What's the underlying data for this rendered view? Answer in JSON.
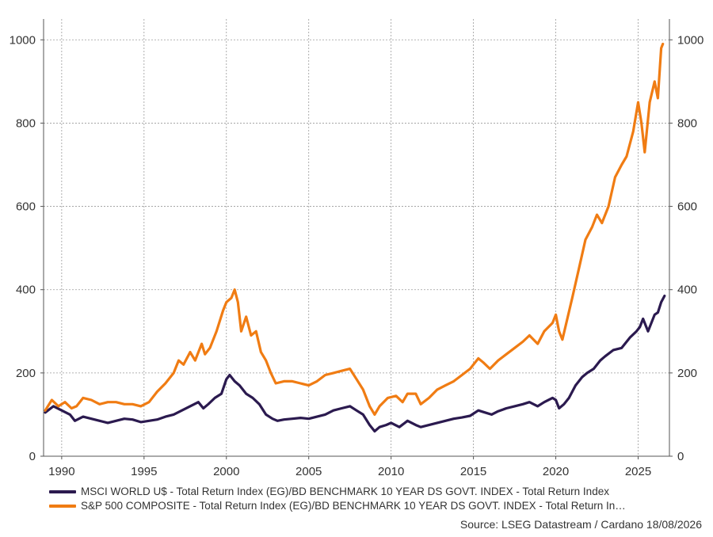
{
  "chart_data": {
    "type": "line",
    "title": "",
    "xlabel": "",
    "ylabel": "",
    "xlim": [
      1988.9,
      2026.9
    ],
    "ylim": [
      0,
      1050
    ],
    "x_ticks": [
      1990,
      1995,
      2000,
      2005,
      2010,
      2015,
      2020,
      2025
    ],
    "y_ticks": [
      0,
      200,
      400,
      600,
      800,
      1000
    ],
    "grid": true,
    "legend_position": "bottom",
    "series": [
      {
        "name": "MSCI WORLD U$ - Total Return Index (EG)/BD BENCHMARK 10 YEAR DS GOVT. INDEX - Total Return Index",
        "color": "#2b1a4f",
        "x": [
          1989.0,
          1989.5,
          1990.0,
          1990.5,
          1990.8,
          1991.3,
          1991.8,
          1992.3,
          1992.8,
          1993.3,
          1993.8,
          1994.3,
          1994.8,
          1995.3,
          1995.8,
          1996.3,
          1996.8,
          1997.3,
          1997.8,
          1998.3,
          1998.6,
          1998.9,
          1999.3,
          1999.7,
          2000.0,
          2000.2,
          2000.5,
          2000.8,
          2001.2,
          2001.6,
          2002.0,
          2002.4,
          2002.8,
          2003.1,
          2003.5,
          2004.0,
          2004.5,
          2005.0,
          2005.5,
          2006.0,
          2006.5,
          2007.0,
          2007.5,
          2007.9,
          2008.3,
          2008.7,
          2009.0,
          2009.3,
          2009.7,
          2010.0,
          2010.5,
          2011.0,
          2011.5,
          2011.8,
          2012.3,
          2012.8,
          2013.3,
          2013.8,
          2014.3,
          2014.8,
          2015.3,
          2015.7,
          2016.1,
          2016.5,
          2017.0,
          2017.5,
          2018.0,
          2018.4,
          2018.9,
          2019.3,
          2019.8,
          2020.0,
          2020.2,
          2020.5,
          2020.8,
          2021.2,
          2021.6,
          2021.9,
          2022.3,
          2022.7,
          2023.0,
          2023.5,
          2024.0,
          2024.5,
          2024.9,
          2025.1,
          2025.3,
          2025.6,
          2026.0,
          2026.2,
          2026.4,
          2026.6
        ],
        "y": [
          105,
          120,
          110,
          100,
          85,
          95,
          90,
          85,
          80,
          85,
          90,
          88,
          82,
          85,
          88,
          95,
          100,
          110,
          120,
          130,
          115,
          125,
          140,
          150,
          185,
          195,
          180,
          170,
          150,
          140,
          125,
          100,
          90,
          85,
          88,
          90,
          92,
          90,
          95,
          100,
          110,
          115,
          120,
          110,
          100,
          75,
          60,
          70,
          75,
          80,
          70,
          85,
          75,
          70,
          75,
          80,
          85,
          90,
          93,
          97,
          110,
          105,
          100,
          108,
          115,
          120,
          125,
          130,
          120,
          130,
          140,
          135,
          115,
          125,
          140,
          170,
          190,
          200,
          210,
          230,
          240,
          255,
          260,
          285,
          300,
          310,
          330,
          300,
          340,
          345,
          370,
          385
        ]
      },
      {
        "name": "S&P 500 COMPOSITE - Total Return Index (EG)/BD BENCHMARK 10 YEAR DS GOVT. INDEX - Total Return In…",
        "color": "#f07c13",
        "x": [
          1989.0,
          1989.4,
          1989.8,
          1990.2,
          1990.6,
          1990.9,
          1991.3,
          1991.8,
          1992.3,
          1992.8,
          1993.3,
          1993.8,
          1994.3,
          1994.8,
          1995.3,
          1995.8,
          1996.3,
          1996.8,
          1997.1,
          1997.4,
          1997.8,
          1998.1,
          1998.5,
          1998.7,
          1999.0,
          1999.4,
          1999.8,
          2000.0,
          2000.3,
          2000.5,
          2000.7,
          2000.9,
          2001.2,
          2001.5,
          2001.8,
          2002.1,
          2002.4,
          2002.7,
          2003.0,
          2003.5,
          2004.0,
          2004.5,
          2005.0,
          2005.5,
          2006.0,
          2006.5,
          2007.0,
          2007.5,
          2007.9,
          2008.3,
          2008.7,
          2009.0,
          2009.3,
          2009.8,
          2010.3,
          2010.7,
          2011.0,
          2011.5,
          2011.8,
          2012.3,
          2012.8,
          2013.3,
          2013.8,
          2014.3,
          2014.8,
          2015.3,
          2015.6,
          2016.0,
          2016.5,
          2017.0,
          2017.5,
          2018.0,
          2018.4,
          2018.9,
          2019.3,
          2019.8,
          2020.0,
          2020.2,
          2020.4,
          2020.7,
          2021.0,
          2021.4,
          2021.8,
          2022.2,
          2022.5,
          2022.8,
          2023.2,
          2023.6,
          2024.0,
          2024.3,
          2024.7,
          2025.0,
          2025.2,
          2025.4,
          2025.7,
          2026.0,
          2026.2,
          2026.4,
          2026.5
        ],
        "y": [
          110,
          135,
          120,
          130,
          115,
          120,
          140,
          135,
          125,
          130,
          130,
          125,
          125,
          120,
          130,
          155,
          175,
          200,
          230,
          220,
          250,
          230,
          270,
          245,
          260,
          300,
          350,
          370,
          380,
          400,
          370,
          300,
          335,
          290,
          300,
          250,
          230,
          200,
          175,
          180,
          180,
          175,
          170,
          180,
          195,
          200,
          205,
          210,
          185,
          160,
          120,
          100,
          120,
          140,
          145,
          130,
          150,
          150,
          125,
          140,
          160,
          170,
          180,
          195,
          210,
          235,
          225,
          210,
          230,
          245,
          260,
          275,
          290,
          270,
          300,
          320,
          340,
          300,
          280,
          330,
          380,
          450,
          520,
          550,
          580,
          560,
          600,
          670,
          700,
          720,
          780,
          850,
          800,
          730,
          850,
          900,
          860,
          980,
          990
        ]
      }
    ]
  },
  "source": "Source: LSEG Datastream / Cardano  18/08/2026"
}
